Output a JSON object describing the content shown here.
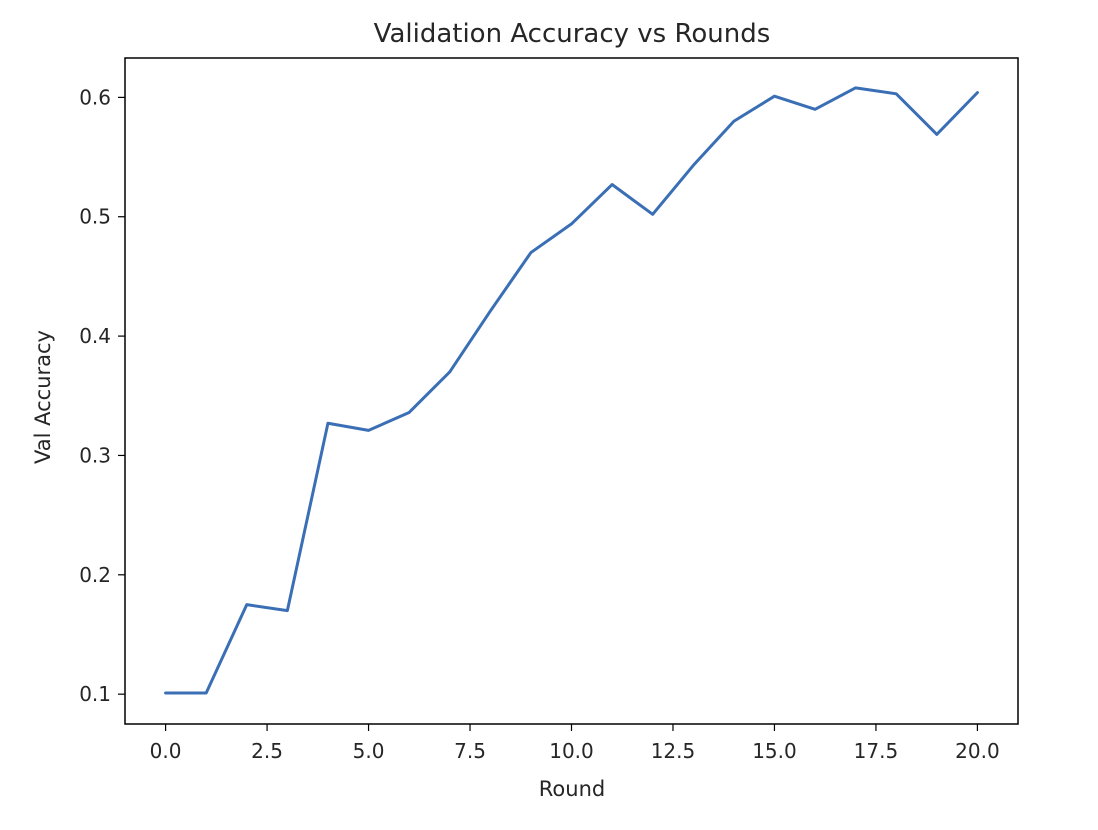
{
  "chart_data": {
    "type": "line",
    "title": "Validation Accuracy vs Rounds",
    "xlabel": "Round",
    "ylabel": "Val Accuracy",
    "xlim": [
      -1.0,
      21.0
    ],
    "ylim": [
      0.075,
      0.633
    ],
    "xticks": [
      0.0,
      2.5,
      5.0,
      7.5,
      10.0,
      12.5,
      15.0,
      17.5,
      20.0
    ],
    "xtick_labels": [
      "0.0",
      "2.5",
      "5.0",
      "7.5",
      "10.0",
      "12.5",
      "15.0",
      "17.5",
      "20.0"
    ],
    "yticks": [
      0.1,
      0.2,
      0.3,
      0.4,
      0.5,
      0.6
    ],
    "ytick_labels": [
      "0.1",
      "0.2",
      "0.3",
      "0.4",
      "0.5",
      "0.6"
    ],
    "grid": false,
    "legend": false,
    "series": [
      {
        "color": "#3a6fb5",
        "x": [
          0,
          1,
          2,
          3,
          4,
          5,
          6,
          7,
          8,
          9,
          10,
          11,
          12,
          13,
          14,
          15,
          16,
          17,
          18,
          19,
          20
        ],
        "y": [
          0.101,
          0.101,
          0.175,
          0.17,
          0.327,
          0.321,
          0.336,
          0.37,
          0.421,
          0.47,
          0.494,
          0.527,
          0.502,
          0.543,
          0.58,
          0.601,
          0.59,
          0.608,
          0.603,
          0.569,
          0.604
        ]
      }
    ]
  }
}
